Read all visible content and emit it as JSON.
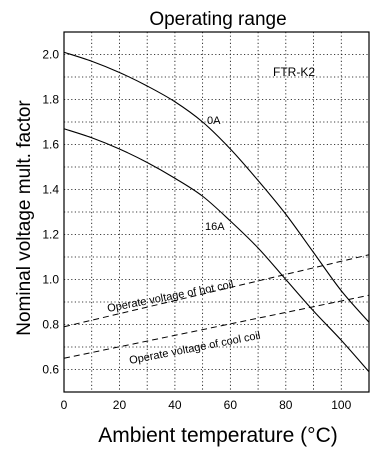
{
  "chart_data": {
    "type": "line",
    "title": "Operating range",
    "xlabel": "Ambient temperature (°C)",
    "ylabel": "Nominal voltage mult. factor",
    "xlim": [
      0,
      110
    ],
    "ylim": [
      0.5,
      2.1
    ],
    "xticks": [
      0,
      20,
      40,
      60,
      80,
      100
    ],
    "yticks": [
      0.6,
      0.8,
      1.0,
      1.2,
      1.4,
      1.6,
      1.8,
      2.0
    ],
    "xtick_labels": [
      "0",
      "20",
      "40",
      "60",
      "80",
      "100"
    ],
    "ytick_labels": [
      "0.6",
      "0.8",
      "1.0",
      "1.2",
      "1.4",
      "1.6",
      "1.8",
      "2.0"
    ],
    "grid": true,
    "model_label": "FTR-K2",
    "series": [
      {
        "name": "0A",
        "style": "solid",
        "x": [
          0,
          10,
          20,
          30,
          40,
          50,
          60,
          70,
          80,
          90,
          100,
          110
        ],
        "y": [
          2.01,
          1.97,
          1.92,
          1.86,
          1.79,
          1.7,
          1.58,
          1.44,
          1.29,
          1.12,
          0.95,
          0.81
        ]
      },
      {
        "name": "16A",
        "style": "solid",
        "x": [
          0,
          10,
          20,
          30,
          40,
          50,
          60,
          70,
          80,
          90,
          100,
          110
        ],
        "y": [
          1.67,
          1.63,
          1.58,
          1.52,
          1.45,
          1.37,
          1.26,
          1.14,
          1.0,
          0.86,
          0.73,
          0.59
        ]
      },
      {
        "name": "Operate voltage of hot coil",
        "style": "dashed",
        "x": [
          0,
          110
        ],
        "y": [
          0.79,
          1.11
        ]
      },
      {
        "name": "Operate voltage of cool coil",
        "style": "dashed",
        "x": [
          0,
          110
        ],
        "y": [
          0.65,
          0.93
        ]
      }
    ]
  }
}
